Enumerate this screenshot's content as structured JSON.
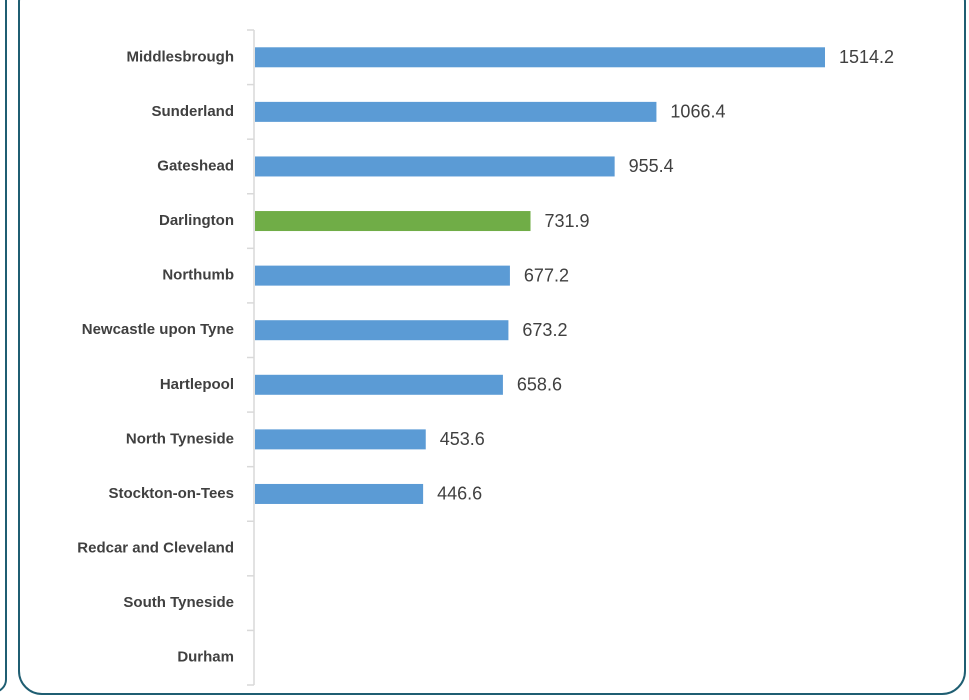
{
  "chart_data": {
    "type": "bar",
    "orientation": "horizontal",
    "categories": [
      "Middlesbrough",
      "Sunderland",
      "Gateshead",
      "Darlington",
      "Northumb",
      "Newcastle upon Tyne",
      "Hartlepool",
      "North Tyneside",
      "Stockton-on-Tees",
      "Redcar and Cleveland",
      "South Tyneside",
      "Durham"
    ],
    "values": [
      1514.2,
      1066.4,
      955.4,
      731.9,
      677.2,
      673.2,
      658.6,
      453.6,
      446.6,
      null,
      null,
      null
    ],
    "data_labels": [
      "1514.2",
      "1066.4",
      "955.4",
      "731.9",
      "677.2",
      "673.2",
      "658.6",
      "453.6",
      "446.6",
      "",
      "",
      ""
    ],
    "highlight_category": "Darlington",
    "colors": {
      "default": "#5b9bd5",
      "highlight": "#70ad47",
      "axis": "#d9d9d9",
      "panel_border": "#1f5e72"
    },
    "xlim": [
      0,
      1650
    ],
    "grid": false,
    "legend": "none"
  }
}
